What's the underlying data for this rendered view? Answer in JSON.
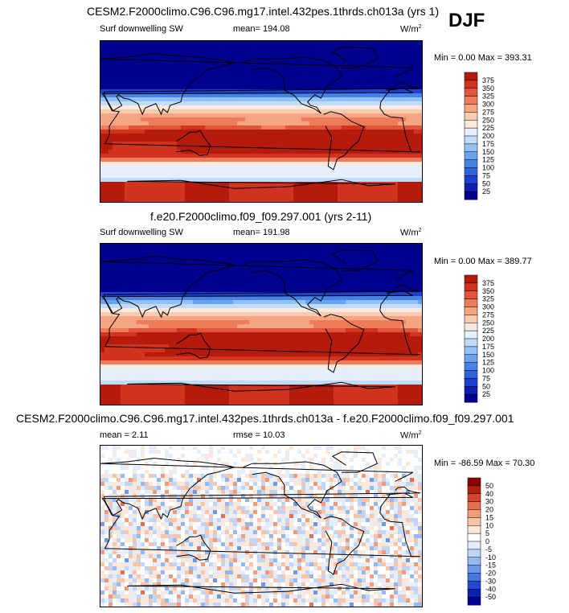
{
  "season": "DJF",
  "colors": {
    "abs_scale": [
      "#00008e",
      "#0c1fb0",
      "#1e40d0",
      "#2f63dc",
      "#4584e6",
      "#6aa2ee",
      "#93c0f5",
      "#c0dcfa",
      "#e6f0fc",
      "#fbe9dd",
      "#fbcbb0",
      "#f6a582",
      "#ee7c5b",
      "#e2553c",
      "#d1331f",
      "#b51b0c",
      "#8f0d00"
    ],
    "diff_scale": [
      "#000090",
      "#0a21b4",
      "#2548d2",
      "#4676e2",
      "#6a98ec",
      "#93b9f3",
      "#bfd6f8",
      "#e4eefb",
      "#ffffff",
      "#fde7d9",
      "#fac4a8",
      "#f29b78",
      "#e76f4e",
      "#d5452b",
      "#b52111",
      "#8d0000"
    ],
    "land_line": "#000000"
  },
  "chart_data": [
    {
      "type": "heatmap",
      "title": "CESM2.F2000climo.C96.C96.mg17.intel.432pes.1thrds.ch013a (yrs 1)",
      "left_label": "Surf downwelling SW",
      "mean_label": "mean= 194.08",
      "units": "W/m",
      "units_exp": "2",
      "minmax_label": "Min = 0.00 Max = 393.31",
      "mean": 194.08,
      "min": 0.0,
      "max": 393.31,
      "colorbar_levels": [
        25,
        50,
        75,
        100,
        125,
        150,
        175,
        200,
        225,
        250,
        275,
        300,
        325,
        350,
        375
      ],
      "colorbar_labels": [
        "375",
        "350",
        "325",
        "300",
        "275",
        "250",
        "225",
        "200",
        "175",
        "150",
        "125",
        "100",
        "75",
        "50",
        "25"
      ]
    },
    {
      "type": "heatmap",
      "title": "f.e20.F2000climo.f09_f09.297.001 (yrs 2-11)",
      "left_label": "Surf downwelling SW",
      "mean_label": "mean= 191.98",
      "units": "W/m",
      "units_exp": "2",
      "minmax_label": "Min = 0.00 Max = 389.77",
      "mean": 191.98,
      "min": 0.0,
      "max": 389.77,
      "colorbar_levels": [
        25,
        50,
        75,
        100,
        125,
        150,
        175,
        200,
        225,
        250,
        275,
        300,
        325,
        350,
        375
      ],
      "colorbar_labels": [
        "375",
        "350",
        "325",
        "300",
        "275",
        "250",
        "225",
        "200",
        "175",
        "150",
        "125",
        "100",
        "75",
        "50",
        "25"
      ]
    },
    {
      "type": "heatmap",
      "title": "CESM2.F2000climo.C96.C96.mg17.intel.432pes.1thrds.ch013a - f.e20.F2000climo.f09_f09.297.001",
      "left_label": "mean = 2.11",
      "mean_label": "rmse = 10.03",
      "units": "W/m",
      "units_exp": "2",
      "minmax_label": "Min = -86.59 Max = 70.30",
      "mean": 2.11,
      "rmse": 10.03,
      "min": -86.59,
      "max": 70.3,
      "colorbar_levels": [
        -50,
        -40,
        -30,
        -20,
        -15,
        -10,
        -5,
        0,
        5,
        10,
        15,
        20,
        30,
        40,
        50
      ],
      "colorbar_labels": [
        "50",
        "40",
        "30",
        "20",
        "15",
        "10",
        "5",
        "0",
        "-5",
        "-10",
        "-15",
        "-20",
        "-30",
        "-40",
        "-50"
      ]
    }
  ]
}
